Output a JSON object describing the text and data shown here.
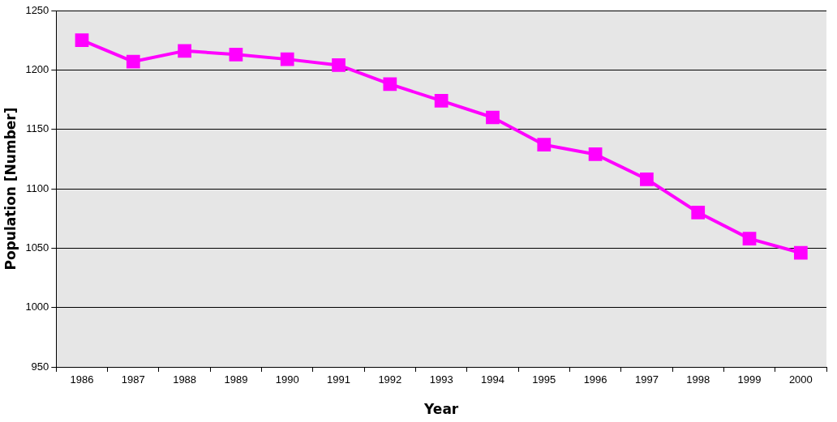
{
  "chart_data": {
    "type": "line",
    "xlabel": "Year",
    "ylabel": "Population [Number]",
    "categories": [
      "1986",
      "1987",
      "1988",
      "1989",
      "1990",
      "1991",
      "1992",
      "1993",
      "1994",
      "1995",
      "1996",
      "1997",
      "1998",
      "1999",
      "2000"
    ],
    "series": [
      {
        "color": "#ff00ff",
        "values": [
          1225,
          1207,
          1216,
          1213,
          1209,
          1204,
          1188,
          1174,
          1160,
          1137,
          1129,
          1108,
          1080,
          1058,
          1046
        ]
      }
    ],
    "ylim": [
      950,
      1250
    ],
    "yticks": [
      950,
      1000,
      1050,
      1100,
      1150,
      1200,
      1250
    ],
    "grid": "y",
    "legend": false,
    "marker": "square",
    "line_style": "solid"
  }
}
